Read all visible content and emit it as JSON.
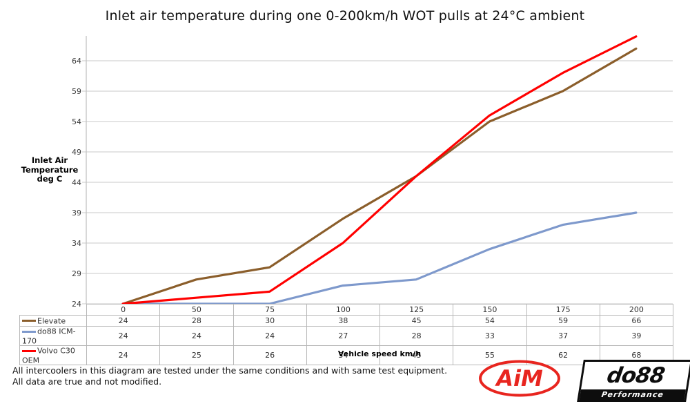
{
  "title": "Inlet air temperature during one 0-200km/h WOT pulls at 24°C ambient",
  "chart_data": {
    "type": "line",
    "categories": [
      "0",
      "50",
      "75",
      "100",
      "125",
      "150",
      "175",
      "200"
    ],
    "series": [
      {
        "name": "Elevate",
        "color": "#8B5E2B",
        "values": [
          24,
          28,
          30,
          38,
          45,
          54,
          59,
          66
        ]
      },
      {
        "name": "do88 ICM-170",
        "color": "#7E99CC",
        "values": [
          24,
          24,
          24,
          27,
          28,
          33,
          37,
          39
        ]
      },
      {
        "name": "Volvo C30 OEM",
        "color": "#FF0000",
        "values": [
          24,
          25,
          26,
          34,
          45,
          55,
          62,
          68
        ]
      }
    ],
    "title": "Inlet air temperature during one 0-200km/h WOT pulls at 24°C ambient",
    "ylabel_lines": [
      "Inlet Air",
      "Temperature",
      "deg C"
    ],
    "xlabel": "Vehicle speed km/h",
    "yticks": [
      24,
      29,
      34,
      39,
      44,
      49,
      54,
      59,
      64
    ],
    "ylim": [
      24,
      68.1
    ],
    "grid": true,
    "legend_position": "table-left",
    "gridline_color": "#C9C9C9",
    "axis_color": "#BFBFBF"
  },
  "footer": {
    "line1": "All intercoolers in this diagram are tested under the same conditions and with same test equipment.",
    "line2": "All data are true and not modified."
  },
  "logos": {
    "aim": {
      "text": "AiM",
      "color": "#E8251F"
    },
    "do88": {
      "text": "do88",
      "subtext": "Performance"
    }
  }
}
